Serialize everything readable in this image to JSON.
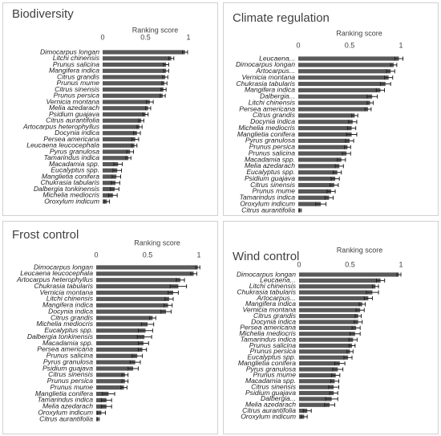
{
  "chart_data": [
    {
      "type": "bar",
      "title": "Biodiversity",
      "x_label": "Ranking score",
      "color": "#595959",
      "xlim": [
        0,
        1
      ],
      "xticks": [
        0,
        0.5,
        1
      ],
      "categories": [
        "Dimocarpus longan",
        "Litchi chinensis",
        "Prunus salicina",
        "Mangifera indica",
        "Citrus grandis",
        "Prunus mume",
        "Citrus sinensis",
        "Prunus persica",
        "Vernicia montana",
        "Melia azedarach",
        "Psidium guajava",
        "Citrus aurantifolia",
        "Artocarpus heterophyllus",
        "Docynia indica",
        "Persea americana",
        "Leucaena leucocephala",
        "Pyrus granulosa",
        "Tamarindus indica",
        "Macadamia spp.",
        "Eucalyptus spp.",
        "Manglietia conifera",
        "Chukrasia tabularis",
        "Dalbergia tonkinensis",
        "Michelia mediocris",
        "Oroxylum indicum"
      ],
      "values": [
        0.96,
        0.8,
        0.74,
        0.74,
        0.73,
        0.72,
        0.71,
        0.7,
        0.55,
        0.53,
        0.5,
        0.45,
        0.43,
        0.4,
        0.38,
        0.37,
        0.32,
        0.3,
        0.18,
        0.17,
        0.16,
        0.15,
        0.14,
        0.12,
        0.05
      ],
      "errors": [
        0.03,
        0.03,
        0.03,
        0.03,
        0.03,
        0.03,
        0.03,
        0.03,
        0.04,
        0.03,
        0.03,
        0.03,
        0.03,
        0.04,
        0.04,
        0.03,
        0.04,
        0.03,
        0.05,
        0.05,
        0.05,
        0.05,
        0.05,
        0.05,
        0.03
      ]
    },
    {
      "type": "bar",
      "title": "Climate regulation",
      "x_label": "Ranking score",
      "color": "#595959",
      "xlim": [
        0,
        1
      ],
      "xticks": [
        0,
        0.5,
        1
      ],
      "categories": [
        "Leucaena...",
        "Dimocarpus longan",
        "Artocarpus...",
        "Vernicia montana",
        "Chukrasia tabularis",
        "Mangifera indica",
        "Dalbergia...",
        "Litchi chinensis",
        "Persea americana",
        "Citrus grandis",
        "Docynia indica",
        "Michelia mediocris",
        "Manglietia conifera",
        "Pyrus granulosa",
        "Prunus persica",
        "Prunus salicina",
        "Macadamia spp.",
        "Melia azedarach",
        "Eucalyptus spp.",
        "Psidium guajava",
        "Citrus sinensis",
        "Prunus mume",
        "Tamarindus indica",
        "Oroxylum indicum",
        "Citrus aurantifolia"
      ],
      "values": [
        0.98,
        0.93,
        0.9,
        0.88,
        0.85,
        0.8,
        0.72,
        0.7,
        0.68,
        0.55,
        0.53,
        0.52,
        0.52,
        0.5,
        0.48,
        0.47,
        0.42,
        0.4,
        0.38,
        0.36,
        0.35,
        0.32,
        0.3,
        0.22,
        0.02
      ],
      "errors": [
        0.04,
        0.03,
        0.04,
        0.04,
        0.05,
        0.04,
        0.05,
        0.03,
        0.03,
        0.03,
        0.04,
        0.04,
        0.05,
        0.04,
        0.03,
        0.04,
        0.04,
        0.04,
        0.04,
        0.04,
        0.04,
        0.04,
        0.04,
        0.05,
        0.01
      ]
    },
    {
      "type": "bar",
      "title": "Frost control",
      "x_label": "Ranking score",
      "color": "#595959",
      "xlim": [
        0,
        1
      ],
      "xticks": [
        0,
        0.5,
        1
      ],
      "categories": [
        "Dimocarpus longan",
        "Leucaena leucocephala",
        "Artocarpus heterophyllus",
        "Chukrasia tabularis",
        "Vernicia montana",
        "Litchi chinensis",
        "Mangifera indica",
        "Docynia indica",
        "Citrus grandis",
        "Michelia mediocris",
        "Eucalyptus spp.",
        "Dalbergia tonkinensis",
        "Macadamia spp.",
        "Persea americana",
        "Prunus salicina",
        "Pyrus granulosa",
        "Psidium guajava",
        "Citrus sinensis",
        "Prunus persica",
        "Prunus mume",
        "Manglietia conifera",
        "Tamarindus indica",
        "Melia azedarach",
        "Oroxylum indicum",
        "Citrus aurantifolia"
      ],
      "values": [
        0.99,
        0.95,
        0.82,
        0.8,
        0.75,
        0.71,
        0.7,
        0.68,
        0.55,
        0.5,
        0.48,
        0.47,
        0.46,
        0.45,
        0.4,
        0.38,
        0.36,
        0.28,
        0.28,
        0.27,
        0.12,
        0.1,
        0.1,
        0.05,
        0.02
      ],
      "errors": [
        0.02,
        0.03,
        0.04,
        0.08,
        0.05,
        0.04,
        0.04,
        0.05,
        0.03,
        0.06,
        0.07,
        0.07,
        0.05,
        0.04,
        0.05,
        0.05,
        0.05,
        0.03,
        0.03,
        0.03,
        0.06,
        0.05,
        0.05,
        0.04,
        0.01
      ]
    },
    {
      "type": "bar",
      "title": "Wind control",
      "x_label": "Ranking score",
      "color": "#595959",
      "xlim": [
        0,
        1
      ],
      "xticks": [
        0,
        0.5,
        1
      ],
      "categories": [
        "Dimocarpus longan",
        "Leucaena...",
        "Litchi chinensis",
        "Chukrasia tabularis",
        "Artocarpus...",
        "Mangifera indica",
        "Vernicia montana",
        "Citrus grandis",
        "Docynia indica",
        "Persea americana",
        "Michelia mediocris",
        "Tamarindus indica",
        "Prunus salicina",
        "Prunus persica",
        "Eucalyptus spp.",
        "Manglietia conifera",
        "Pyrus granulosa",
        "Prunus mume",
        "Macadamia spp.",
        "Citrus sinensis",
        "Psidium guajava",
        "Dalbergia...",
        "Melia azedarach",
        "Citrus aurantifolia",
        "Oroxylum indicum"
      ],
      "values": [
        0.98,
        0.8,
        0.75,
        0.72,
        0.68,
        0.62,
        0.6,
        0.58,
        0.58,
        0.56,
        0.55,
        0.53,
        0.52,
        0.5,
        0.48,
        0.4,
        0.38,
        0.36,
        0.35,
        0.34,
        0.34,
        0.32,
        0.3,
        0.08,
        0.05
      ],
      "errors": [
        0.02,
        0.04,
        0.03,
        0.06,
        0.04,
        0.03,
        0.04,
        0.03,
        0.04,
        0.04,
        0.05,
        0.04,
        0.03,
        0.03,
        0.04,
        0.05,
        0.05,
        0.04,
        0.04,
        0.05,
        0.04,
        0.06,
        0.05,
        0.04,
        0.03
      ]
    }
  ]
}
